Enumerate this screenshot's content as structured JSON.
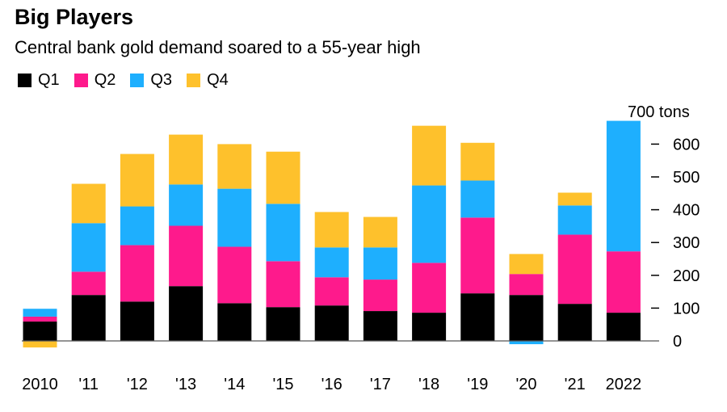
{
  "chart_data": {
    "type": "bar",
    "stacked": true,
    "title": "Big Players",
    "subtitle": "Central bank gold demand soared to a 55-year high",
    "unit_label": "700 tons",
    "categories": [
      "2010",
      "'11",
      "'12",
      "'13",
      "'14",
      "'15",
      "'16",
      "'17",
      "'18",
      "'19",
      "'20",
      "'21",
      "2022"
    ],
    "series": [
      {
        "name": "Q1",
        "color": "#000000",
        "values": [
          59,
          140,
          120,
          167,
          115,
          103,
          108,
          91,
          86,
          145,
          140,
          113,
          86
        ]
      },
      {
        "name": "Q2",
        "color": "#fe1a8c",
        "values": [
          15,
          71,
          172,
          184,
          172,
          140,
          86,
          96,
          152,
          231,
          64,
          211,
          187
        ]
      },
      {
        "name": "Q3",
        "color": "#1eaffe",
        "values": [
          24,
          148,
          118,
          126,
          177,
          175,
          91,
          98,
          236,
          113,
          -10,
          89,
          398
        ]
      },
      {
        "name": "Q4",
        "color": "#fec12c",
        "values": [
          -20,
          120,
          160,
          152,
          136,
          159,
          108,
          93,
          182,
          115,
          61,
          39,
          null
        ]
      }
    ],
    "y_ticks": [
      "0",
      "100",
      "200",
      "300",
      "400",
      "500",
      "600"
    ],
    "ylim": [
      0,
      700
    ],
    "ylabel": "",
    "xlabel": "",
    "legend_position": "top-left",
    "grid": false
  }
}
